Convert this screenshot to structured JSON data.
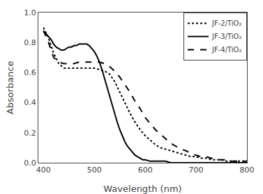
{
  "chart_data": {
    "type": "line",
    "xlabel": "Wavelength (nm)",
    "ylabel": "Absorbance",
    "xlim": [
      390,
      800
    ],
    "ylim": [
      0.0,
      1.0
    ],
    "xticks": [
      400,
      500,
      600,
      700,
      800
    ],
    "yticks": [
      {
        "value": 0.0,
        "label": "0.0"
      },
      0.2,
      0.4,
      0.6,
      0.8,
      {
        "value": 1.0,
        "label": "1.0"
      }
    ],
    "grid": false,
    "legend": "upper right",
    "series": [
      {
        "name": "JF-2/TiO₂",
        "color": "#000000",
        "line_style": "dotted",
        "x": [
          400,
          410,
          420,
          430,
          440,
          450,
          460,
          470,
          480,
          490,
          500,
          510,
          520,
          530,
          540,
          550,
          560,
          570,
          580,
          590,
          600,
          610,
          620,
          630,
          640,
          650,
          660,
          670,
          680,
          690,
          700,
          710,
          720,
          730,
          740,
          750,
          760,
          770,
          780,
          790,
          800
        ],
        "values": [
          0.9,
          0.83,
          0.73,
          0.66,
          0.63,
          0.63,
          0.63,
          0.63,
          0.63,
          0.63,
          0.63,
          0.62,
          0.61,
          0.59,
          0.54,
          0.47,
          0.4,
          0.33,
          0.27,
          0.22,
          0.18,
          0.15,
          0.12,
          0.1,
          0.09,
          0.08,
          0.07,
          0.06,
          0.05,
          0.04,
          0.04,
          0.03,
          0.03,
          0.02,
          0.02,
          0.02,
          0.01,
          0.01,
          0.01,
          0.01,
          0.01
        ]
      },
      {
        "name": "JF-3/TiO₂",
        "color": "#000000",
        "line_style": "solid",
        "x": [
          400,
          405,
          410,
          415,
          420,
          425,
          430,
          435,
          440,
          445,
          450,
          455,
          460,
          465,
          470,
          475,
          480,
          485,
          490,
          495,
          500,
          505,
          510,
          515,
          520,
          525,
          530,
          535,
          540,
          545,
          550,
          555,
          560,
          565,
          570,
          575,
          580,
          585,
          590,
          595,
          600,
          610,
          620,
          630,
          640,
          650,
          660,
          670,
          680,
          690,
          700,
          710,
          720,
          730,
          740,
          750,
          760,
          770,
          780,
          790,
          800
        ],
        "values": [
          0.87,
          0.86,
          0.84,
          0.82,
          0.79,
          0.77,
          0.76,
          0.75,
          0.75,
          0.76,
          0.77,
          0.77,
          0.78,
          0.78,
          0.79,
          0.79,
          0.79,
          0.79,
          0.78,
          0.76,
          0.74,
          0.71,
          0.67,
          0.62,
          0.56,
          0.5,
          0.44,
          0.38,
          0.32,
          0.27,
          0.22,
          0.18,
          0.14,
          0.11,
          0.09,
          0.07,
          0.05,
          0.04,
          0.03,
          0.02,
          0.02,
          0.01,
          0.01,
          0.01,
          0.01,
          0.0,
          0.0,
          0.0,
          0.0,
          0.0,
          0.0,
          0.0,
          0.0,
          0.0,
          0.0,
          0.0,
          0.0,
          0.0,
          0.0,
          0.0,
          0.0
        ]
      },
      {
        "name": "JF-4/TiO₂",
        "color": "#000000",
        "line_style": "dashed",
        "x": [
          400,
          410,
          420,
          430,
          440,
          450,
          460,
          470,
          480,
          490,
          500,
          510,
          520,
          530,
          540,
          550,
          560,
          570,
          580,
          590,
          600,
          610,
          620,
          630,
          640,
          650,
          660,
          670,
          680,
          690,
          700,
          710,
          720,
          730,
          740,
          750,
          760,
          770,
          780,
          790,
          800
        ],
        "values": [
          0.88,
          0.8,
          0.7,
          0.67,
          0.66,
          0.66,
          0.66,
          0.67,
          0.67,
          0.67,
          0.67,
          0.67,
          0.66,
          0.64,
          0.61,
          0.57,
          0.52,
          0.47,
          0.41,
          0.36,
          0.3,
          0.26,
          0.22,
          0.19,
          0.16,
          0.13,
          0.11,
          0.09,
          0.08,
          0.06,
          0.05,
          0.04,
          0.04,
          0.03,
          0.02,
          0.02,
          0.02,
          0.01,
          0.01,
          0.01,
          0.01
        ]
      }
    ]
  }
}
